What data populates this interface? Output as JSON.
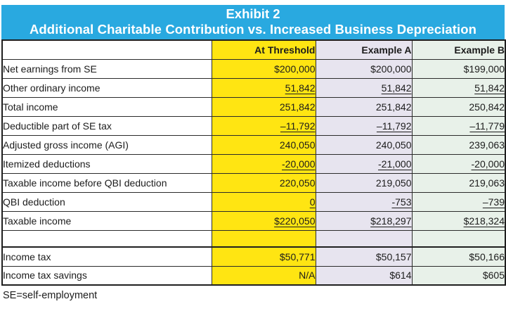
{
  "title": {
    "line1": "Exhibit 2",
    "line2": "Additional Charitable Contribution vs. Increased Business Depreciation"
  },
  "columns": {
    "label": "",
    "threshold": "At Threshold",
    "example_a": "Example A",
    "example_b": "Example B"
  },
  "rows": [
    {
      "label": "Net earnings from SE",
      "values": [
        "$200,000",
        "$200,000",
        "$199,000"
      ],
      "underline": false
    },
    {
      "label": "Other ordinary income",
      "values": [
        "51,842",
        "51,842",
        "51,842"
      ],
      "underline": true
    },
    {
      "label": "Total income",
      "values": [
        "251,842",
        "251,842",
        "250,842"
      ],
      "underline": false
    },
    {
      "label": "Deductible part of SE tax",
      "values": [
        "–11,792",
        "–11,792",
        "–11,779"
      ],
      "underline": true
    },
    {
      "label": "Adjusted gross income (AGI)",
      "values": [
        "240,050",
        "240,050",
        "239,063"
      ],
      "underline": false
    },
    {
      "label": "Itemized deductions",
      "values": [
        "-20,000",
        "-21,000",
        "-20,000"
      ],
      "underline": true
    },
    {
      "label": "Taxable income before QBI deduction",
      "values": [
        "220,050",
        "219,050",
        "219,063"
      ],
      "underline": false
    },
    {
      "label": "QBI deduction",
      "values": [
        "0",
        "-753",
        "–739"
      ],
      "underline": true
    },
    {
      "label": "Taxable income",
      "values": [
        "$220,050",
        "$218,297",
        "$218,324"
      ],
      "underline": true
    },
    {
      "label": "",
      "values": [
        "",
        "",
        ""
      ],
      "underline": false,
      "spacer": true
    },
    {
      "label": "Income tax",
      "values": [
        "$50,771",
        "$50,157",
        "$50,166"
      ],
      "underline": false
    },
    {
      "label": "Income tax savings",
      "values": [
        "N/A",
        "$614",
        "$605"
      ],
      "underline": false
    }
  ],
  "footnote": "SE=self-employment",
  "colors": {
    "banner": "#29A9E0",
    "threshold": "#FFE512",
    "example_a": "#E7E4EF",
    "example_b": "#E8F1E9"
  }
}
